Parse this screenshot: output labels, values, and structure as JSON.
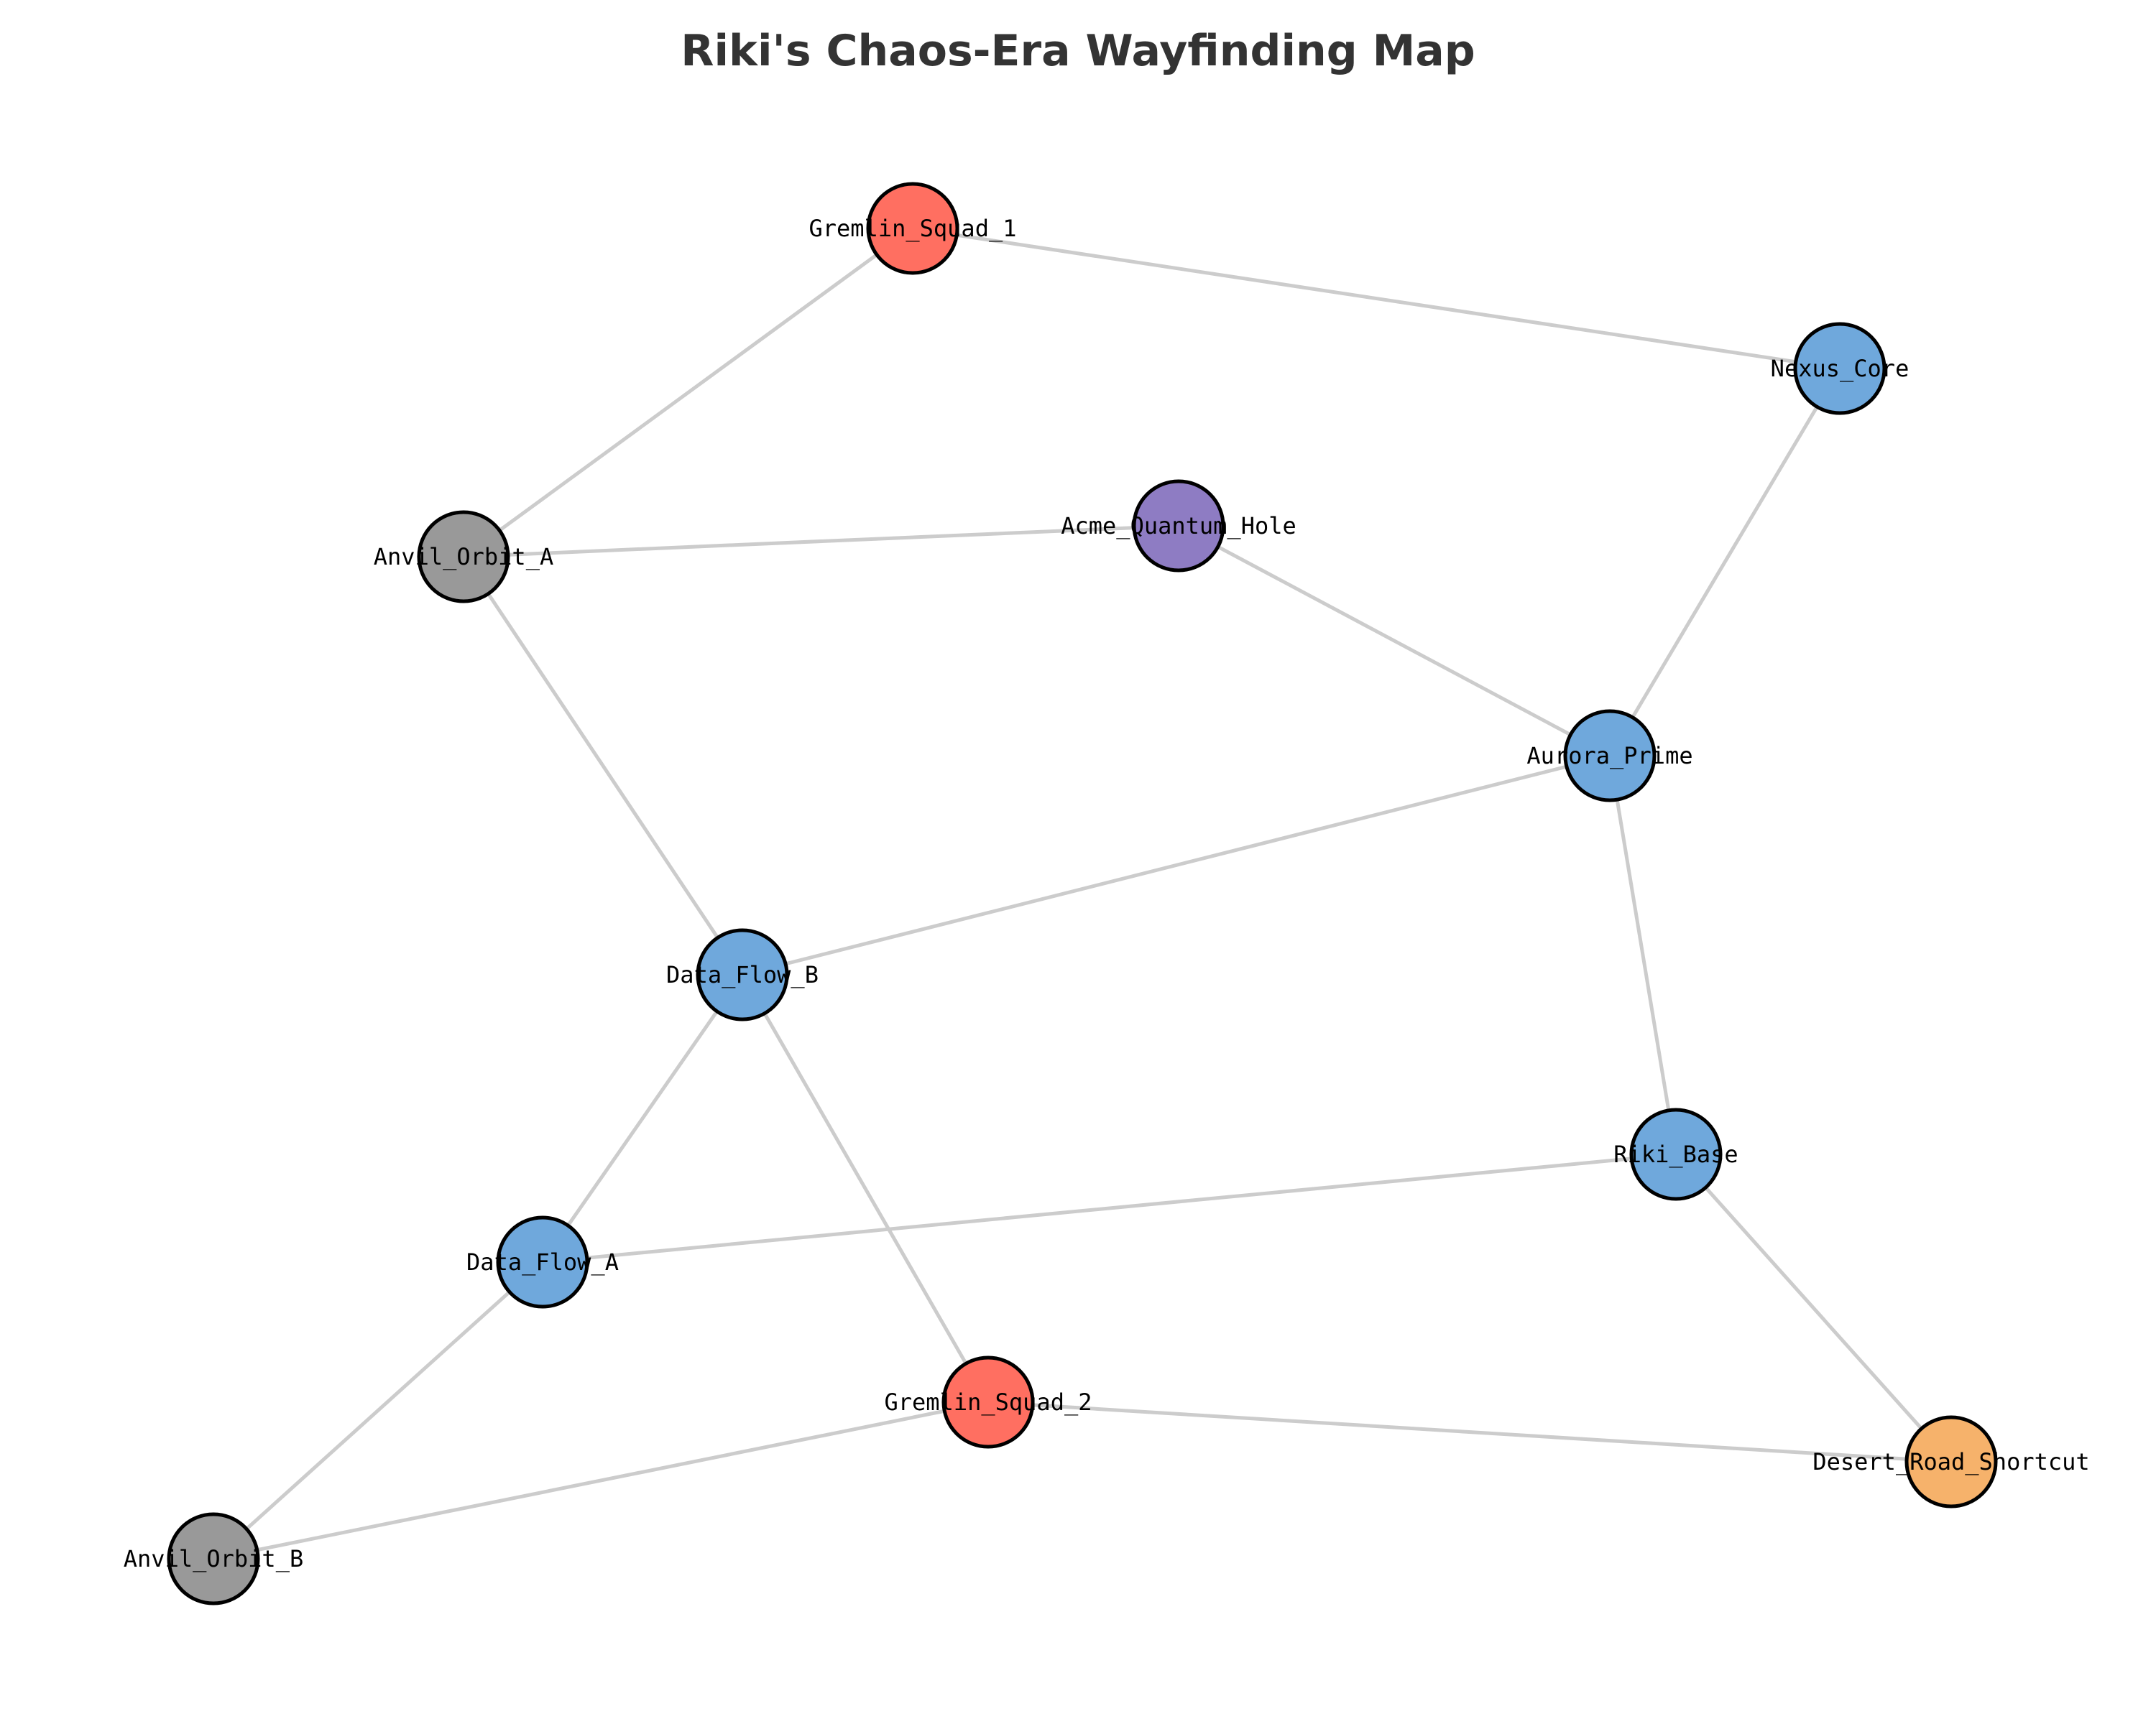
{
  "title": "Riki's Chaos-Era Wayfinding Map",
  "colors": {
    "blue": "#6fa8dc",
    "red": "#ff6f61",
    "gray": "#999999",
    "purple": "#8e7cc3",
    "orange": "#f6b26b",
    "edge": "#cccccc",
    "outline": "#000000"
  },
  "nodes": [
    {
      "id": "Gremlin_Squad_1",
      "label": "Gremlin_Squad_1",
      "color": "red"
    },
    {
      "id": "Nexus_Core",
      "label": "Nexus_Core",
      "color": "blue"
    },
    {
      "id": "Anvil_Orbit_A",
      "label": "Anvil_Orbit_A",
      "color": "gray"
    },
    {
      "id": "Acme_Quantum_Hole",
      "label": "Acme_Quantum_Hole",
      "color": "purple"
    },
    {
      "id": "Aurora_Prime",
      "label": "Aurora_Prime",
      "color": "blue"
    },
    {
      "id": "Data_Flow_B",
      "label": "Data_Flow_B",
      "color": "blue"
    },
    {
      "id": "Riki_Base",
      "label": "Riki_Base",
      "color": "blue"
    },
    {
      "id": "Data_Flow_A",
      "label": "Data_Flow_A",
      "color": "blue"
    },
    {
      "id": "Gremlin_Squad_2",
      "label": "Gremlin_Squad_2",
      "color": "red"
    },
    {
      "id": "Desert_Road_Shortcut",
      "label": "Desert_Road_Shortcut",
      "color": "orange"
    },
    {
      "id": "Anvil_Orbit_B",
      "label": "Anvil_Orbit_B",
      "color": "gray"
    }
  ],
  "edges": [
    [
      "Gremlin_Squad_1",
      "Nexus_Core"
    ],
    [
      "Gremlin_Squad_1",
      "Anvil_Orbit_A"
    ],
    [
      "Anvil_Orbit_A",
      "Acme_Quantum_Hole"
    ],
    [
      "Anvil_Orbit_A",
      "Data_Flow_B"
    ],
    [
      "Acme_Quantum_Hole",
      "Aurora_Prime"
    ],
    [
      "Nexus_Core",
      "Aurora_Prime"
    ],
    [
      "Aurora_Prime",
      "Data_Flow_B"
    ],
    [
      "Aurora_Prime",
      "Riki_Base"
    ],
    [
      "Data_Flow_B",
      "Data_Flow_A"
    ],
    [
      "Data_Flow_B",
      "Gremlin_Squad_2"
    ],
    [
      "Riki_Base",
      "Data_Flow_A"
    ],
    [
      "Riki_Base",
      "Desert_Road_Shortcut"
    ],
    [
      "Data_Flow_A",
      "Anvil_Orbit_B"
    ],
    [
      "Gremlin_Squad_2",
      "Anvil_Orbit_B"
    ],
    [
      "Gremlin_Squad_2",
      "Desert_Road_Shortcut"
    ]
  ]
}
